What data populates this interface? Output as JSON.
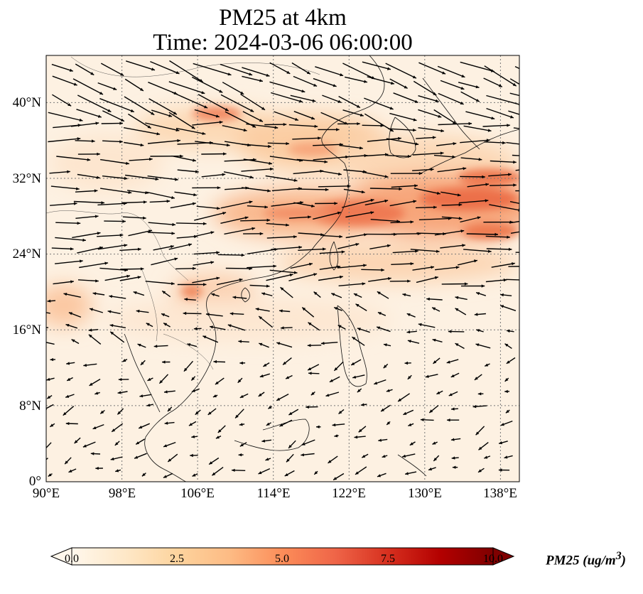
{
  "title": {
    "line1": "PM25 at 4km",
    "line2": "Time: 2024-03-06 06:00:00"
  },
  "map": {
    "region": "East and Southeast Asia",
    "projection": "PlateCarree",
    "lon_range": [
      90,
      140
    ],
    "lat_range": [
      0,
      44
    ],
    "gridlines": "dotted",
    "lon_ticks": [
      {
        "value": 90,
        "label": "90°E"
      },
      {
        "value": 98,
        "label": "98°E"
      },
      {
        "value": 106,
        "label": "106°E"
      },
      {
        "value": 114,
        "label": "114°E"
      },
      {
        "value": 122,
        "label": "122°E"
      },
      {
        "value": 130,
        "label": "130°E"
      },
      {
        "value": 138,
        "label": "138°E"
      }
    ],
    "lat_ticks": [
      {
        "value": 0,
        "label": "0°"
      },
      {
        "value": 8,
        "label": "8°N"
      },
      {
        "value": 16,
        "label": "16°N"
      },
      {
        "value": 24,
        "label": "24°N"
      },
      {
        "value": 32,
        "label": "32°N"
      },
      {
        "value": 40,
        "label": "40°N"
      }
    ],
    "field": "PM25",
    "high_concentration_band": "Sichuan basin through Yangtze delta and Taiwan to south of Japan (~26-33°N)",
    "wind_vectors": "westerly flow strongest north of 20°N, weak easterlies in the tropics"
  },
  "colorbar": {
    "label": "PM25 (ug/m$^3$)",
    "label_text": "PM25 (ug/m",
    "label_sup": "3",
    "label_close": ")",
    "colormap": "OrRd",
    "range": [
      0,
      10
    ],
    "extend": "both",
    "ticks": [
      {
        "value": 0,
        "label": "0.0"
      },
      {
        "value": 2.5,
        "label": "2.5"
      },
      {
        "value": 5,
        "label": "5.0"
      },
      {
        "value": 7.5,
        "label": "7.5"
      },
      {
        "value": 10,
        "label": "10.0"
      }
    ],
    "colors": [
      "#fff7ec",
      "#fee8c8",
      "#fdd49e",
      "#fdbb84",
      "#fc8d59",
      "#ef6548",
      "#d7301f",
      "#b30000",
      "#7f0000"
    ]
  }
}
